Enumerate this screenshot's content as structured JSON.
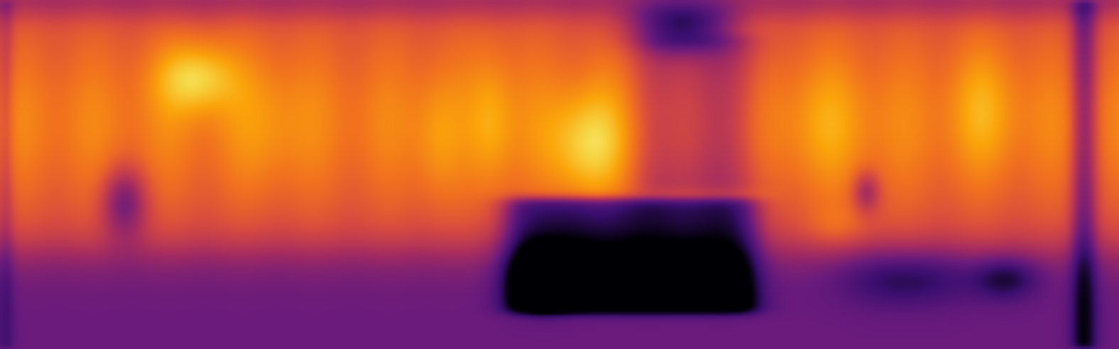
{
  "image": {
    "kind": "depth-map",
    "colormap": "inferno",
    "palette": {
      "near_dark": "#000004",
      "deep_purple": "#3b0f70",
      "purple": "#6a1b7c",
      "magenta": "#a52c60",
      "red_orange": "#d44842",
      "orange": "#f1711f",
      "amber": "#fba40a",
      "yellow": "#f6d746",
      "pale_yellow": "#fcffa4"
    }
  }
}
